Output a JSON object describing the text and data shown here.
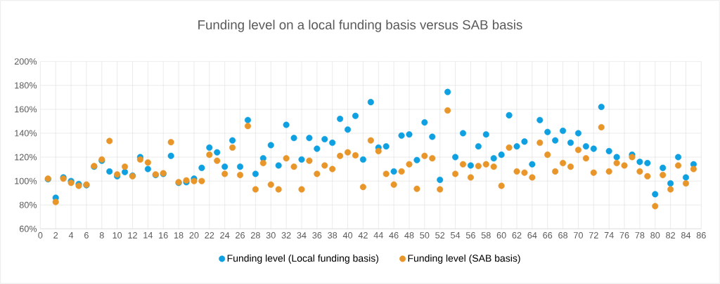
{
  "chart_data": {
    "type": "scatter",
    "title": "Funding level on a local funding basis versus SAB basis",
    "x": [
      1,
      2,
      3,
      4,
      5,
      6,
      7,
      8,
      9,
      10,
      11,
      12,
      13,
      14,
      15,
      16,
      17,
      18,
      19,
      20,
      21,
      22,
      23,
      24,
      25,
      26,
      27,
      28,
      29,
      30,
      31,
      32,
      33,
      34,
      35,
      36,
      37,
      38,
      39,
      40,
      41,
      42,
      43,
      44,
      45,
      46,
      47,
      48,
      49,
      50,
      51,
      52,
      53,
      54,
      55,
      56,
      57,
      58,
      59,
      60,
      61,
      62,
      63,
      64,
      65,
      66,
      67,
      68,
      69,
      70,
      71,
      72,
      73,
      74,
      75,
      76,
      77,
      78,
      79,
      80,
      81,
      82,
      83,
      84,
      85
    ],
    "series": [
      {
        "name": "Funding level (Local funding basis)",
        "color": "#0ea0e0",
        "values": [
          101.5,
          86,
          103,
          100,
          97.5,
          96.5,
          112,
          117,
          108,
          104,
          107.5,
          104.5,
          120,
          110,
          105,
          106,
          121,
          98.5,
          99,
          102,
          111,
          128,
          124,
          112,
          134,
          112,
          151,
          106,
          119,
          130,
          113,
          147,
          136,
          118,
          136,
          127,
          135,
          132,
          152,
          143,
          154.5,
          118,
          166,
          128,
          129,
          108,
          138,
          139,
          117.5,
          149,
          137,
          101,
          174.5,
          120,
          140,
          113,
          129,
          139,
          119,
          122,
          155,
          129,
          133,
          114,
          151,
          141,
          134,
          142,
          132,
          140,
          129,
          127,
          162,
          125,
          120,
          null,
          122,
          116,
          115,
          89,
          111,
          98,
          120,
          103,
          114
        ]
      },
      {
        "name": "Funding level (SAB basis)",
        "color": "#e8962a",
        "values": [
          102,
          82.5,
          102,
          98.5,
          96,
          97,
          112.5,
          118,
          133.5,
          105.5,
          112,
          104,
          118,
          115.5,
          105.5,
          106.5,
          132.5,
          99,
          100.5,
          100,
          100,
          122,
          117,
          106,
          128,
          105,
          146,
          93,
          115,
          97,
          93,
          119,
          112,
          93,
          117,
          106,
          113,
          110,
          121,
          124,
          121.5,
          95,
          134,
          125,
          106,
          97,
          108,
          114,
          93.5,
          121,
          119,
          93,
          159,
          106,
          114,
          103,
          112.5,
          114,
          112,
          96,
          128,
          108,
          107,
          103,
          132,
          122,
          108,
          115,
          112,
          126,
          119,
          107,
          145,
          108,
          115,
          113,
          120,
          108,
          104,
          79,
          105,
          93,
          113,
          98,
          110
        ]
      }
    ],
    "xlim": [
      0,
      86
    ],
    "xticks": [
      0,
      2,
      4,
      6,
      8,
      10,
      12,
      14,
      16,
      18,
      20,
      22,
      24,
      26,
      28,
      30,
      32,
      34,
      36,
      38,
      40,
      42,
      44,
      46,
      48,
      50,
      52,
      54,
      56,
      58,
      60,
      62,
      64,
      66,
      68,
      70,
      72,
      74,
      76,
      78,
      80,
      82,
      84,
      86
    ],
    "ylim": [
      60,
      200
    ],
    "yticks": [
      {
        "value": 60,
        "label": "60%"
      },
      {
        "value": 80,
        "label": "80%"
      },
      {
        "value": 100,
        "label": "100%"
      },
      {
        "value": 120,
        "label": "120%"
      },
      {
        "value": 140,
        "label": "140%"
      },
      {
        "value": 160,
        "label": "160%"
      },
      {
        "value": 180,
        "label": "180%"
      },
      {
        "value": 200,
        "label": "200%"
      }
    ],
    "grid": true,
    "legend": "bottom"
  }
}
